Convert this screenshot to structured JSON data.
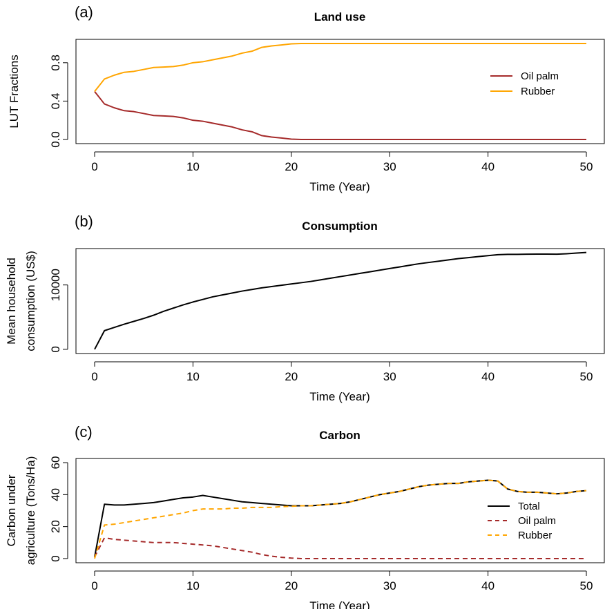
{
  "chart_data": [
    {
      "type": "line",
      "panel_label": "(a)",
      "title": "Land use",
      "xlabel": "Time (Year)",
      "ylabel": [
        "LUT Fractions"
      ],
      "xlim": [
        0,
        50
      ],
      "ylim": [
        0,
        1
      ],
      "xticks": [
        0,
        10,
        20,
        30,
        40,
        50
      ],
      "xtick_labels": [
        "0",
        "10",
        "20",
        "30",
        "40",
        "50"
      ],
      "yticks": [
        0,
        0.4,
        0.8
      ],
      "ytick_labels": [
        "0.0",
        "0.4",
        "0.8"
      ],
      "grid": false,
      "legend": "right",
      "x": [
        0,
        1,
        2,
        3,
        4,
        5,
        6,
        7,
        8,
        9,
        10,
        11,
        12,
        13,
        14,
        15,
        16,
        17,
        18,
        19,
        20,
        21,
        22,
        23,
        24,
        25,
        26,
        27,
        28,
        29,
        30,
        31,
        32,
        33,
        34,
        35,
        36,
        37,
        38,
        39,
        40,
        41,
        42,
        43,
        44,
        45,
        46,
        47,
        48,
        49,
        50
      ],
      "series": [
        {
          "name": "Oil palm",
          "color": "#a52a2a",
          "dash": "solid",
          "values": [
            0.5,
            0.37,
            0.33,
            0.3,
            0.29,
            0.27,
            0.25,
            0.245,
            0.24,
            0.225,
            0.2,
            0.19,
            0.17,
            0.15,
            0.13,
            0.1,
            0.08,
            0.04,
            0.025,
            0.015,
            0.003,
            0,
            0,
            0,
            0,
            0,
            0,
            0,
            0,
            0,
            0,
            0,
            0,
            0,
            0,
            0,
            0,
            0,
            0,
            0,
            0,
            0,
            0,
            0,
            0,
            0,
            0,
            0,
            0,
            0,
            0
          ]
        },
        {
          "name": "Rubber",
          "color": "#ffa500",
          "dash": "solid",
          "values": [
            0.5,
            0.63,
            0.67,
            0.7,
            0.71,
            0.73,
            0.75,
            0.755,
            0.76,
            0.775,
            0.8,
            0.81,
            0.83,
            0.85,
            0.87,
            0.9,
            0.92,
            0.96,
            0.975,
            0.985,
            0.997,
            1,
            1,
            1,
            1,
            1,
            1,
            1,
            1,
            1,
            1,
            1,
            1,
            1,
            1,
            1,
            1,
            1,
            1,
            1,
            1,
            1,
            1,
            1,
            1,
            1,
            1,
            1,
            1,
            1,
            1
          ]
        }
      ]
    },
    {
      "type": "line",
      "panel_label": "(b)",
      "title": "Consumption",
      "xlabel": "Time (Year)",
      "ylabel": [
        "Mean household",
        "consumption (US$)"
      ],
      "xlim": [
        0,
        50
      ],
      "ylim": [
        0,
        15000
      ],
      "xticks": [
        0,
        10,
        20,
        30,
        40,
        50
      ],
      "xtick_labels": [
        "0",
        "10",
        "20",
        "30",
        "40",
        "50"
      ],
      "yticks": [
        0,
        10000
      ],
      "ytick_labels": [
        "0",
        "10000"
      ],
      "grid": false,
      "x": [
        0,
        1,
        2,
        3,
        4,
        5,
        6,
        7,
        8,
        9,
        10,
        11,
        12,
        13,
        14,
        15,
        16,
        17,
        18,
        19,
        20,
        21,
        22,
        23,
        24,
        25,
        26,
        27,
        28,
        29,
        30,
        31,
        32,
        33,
        34,
        35,
        36,
        37,
        38,
        39,
        40,
        41,
        42,
        43,
        44,
        45,
        46,
        47,
        48,
        49,
        50
      ],
      "series": [
        {
          "color": "#000000",
          "dash": "solid",
          "values": [
            0,
            2900,
            3400,
            3900,
            4350,
            4800,
            5300,
            5900,
            6400,
            6900,
            7350,
            7750,
            8150,
            8450,
            8750,
            9050,
            9300,
            9550,
            9750,
            9950,
            10150,
            10350,
            10550,
            10800,
            11050,
            11300,
            11550,
            11800,
            12050,
            12300,
            12550,
            12800,
            13050,
            13300,
            13500,
            13700,
            13900,
            14100,
            14250,
            14400,
            14550,
            14700,
            14750,
            14750,
            14780,
            14800,
            14800,
            14780,
            14850,
            14950,
            15050
          ]
        }
      ]
    },
    {
      "type": "line",
      "panel_label": "(c)",
      "title": "Carbon",
      "xlabel": "Time (Year)",
      "ylabel": [
        "Carbon under",
        "agriculture (Tons/Ha)"
      ],
      "xlim": [
        0,
        50
      ],
      "ylim": [
        0,
        60
      ],
      "xticks": [
        0,
        10,
        20,
        30,
        40,
        50
      ],
      "xtick_labels": [
        "0",
        "10",
        "20",
        "30",
        "40",
        "50"
      ],
      "yticks": [
        0,
        20,
        40,
        60
      ],
      "ytick_labels": [
        "0",
        "20",
        "40",
        "60"
      ],
      "grid": false,
      "legend": "right",
      "x": [
        0,
        1,
        2,
        3,
        4,
        5,
        6,
        7,
        8,
        9,
        10,
        11,
        12,
        13,
        14,
        15,
        16,
        17,
        18,
        19,
        20,
        21,
        22,
        23,
        24,
        25,
        26,
        27,
        28,
        29,
        30,
        31,
        32,
        33,
        34,
        35,
        36,
        37,
        38,
        39,
        40,
        41,
        42,
        43,
        44,
        45,
        46,
        47,
        48,
        49,
        50
      ],
      "series": [
        {
          "name": "Total",
          "color": "#000000",
          "dash": "solid",
          "values": [
            1,
            34,
            33.5,
            33.5,
            34,
            34.5,
            35,
            36,
            37,
            38,
            38.5,
            39.5,
            38.5,
            37.5,
            36.5,
            35.5,
            35,
            34.5,
            34,
            33.5,
            33,
            33,
            33,
            33.5,
            34,
            34.5,
            35.5,
            37,
            38.5,
            40,
            41,
            42,
            43.5,
            45,
            46,
            46.5,
            47,
            47,
            48,
            48.5,
            49,
            48.5,
            43.5,
            42,
            41.5,
            41.5,
            41,
            40.5,
            41,
            42,
            42.5
          ]
        },
        {
          "name": "Oil palm",
          "color": "#a52a2a",
          "dash": "dashed",
          "values": [
            1,
            13,
            12,
            11.5,
            11,
            10.5,
            10,
            10,
            10,
            9.5,
            9,
            8.5,
            8,
            7,
            6,
            5,
            4,
            2.5,
            1.5,
            0.8,
            0.3,
            0,
            0,
            0,
            0,
            0,
            0,
            0,
            0,
            0,
            0,
            0,
            0,
            0,
            0,
            0,
            0,
            0,
            0,
            0,
            0,
            0,
            0,
            0,
            0,
            0,
            0,
            0,
            0,
            0,
            0
          ]
        },
        {
          "name": "Rubber",
          "color": "#ffa500",
          "dash": "dashed",
          "values": [
            0,
            21,
            21.5,
            22.5,
            23.5,
            24.5,
            25.5,
            26.5,
            27.5,
            28.5,
            30,
            31,
            31,
            31,
            31.5,
            31.5,
            32,
            32,
            32,
            32.5,
            32.7,
            33,
            33,
            33.5,
            34,
            34.5,
            35.5,
            37,
            38.5,
            40,
            41,
            42,
            43.5,
            45,
            46,
            46.5,
            47,
            47,
            48,
            48.5,
            49,
            48.5,
            43.5,
            42,
            41.5,
            41.5,
            41,
            40.5,
            41,
            42,
            42.5
          ]
        }
      ]
    }
  ]
}
